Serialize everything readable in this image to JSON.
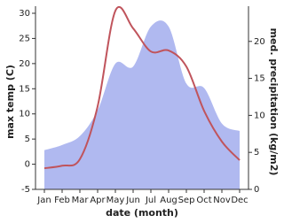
{
  "chart_data": {
    "type": "line",
    "xlabel": "date (month)",
    "ylabel": "max temp (C)",
    "y2label": "med. precipitation (kg/m2)",
    "categories": [
      "Jan",
      "Feb",
      "Mar",
      "Apr",
      "May",
      "Jun",
      "Jul",
      "Aug",
      "Sep",
      "Oct",
      "Nov",
      "Dec"
    ],
    "series": [
      {
        "type": "area",
        "axis": "y2",
        "color": "#b0b9f0",
        "values": [
          5.3,
          6.0,
          7.2,
          10.7,
          17.0,
          16.6,
          22.0,
          22.0,
          14.3,
          13.7,
          8.9,
          7.9
        ]
      },
      {
        "type": "line",
        "axis": "y",
        "color": "#c0545c",
        "values": [
          -0.8,
          -0.3,
          1.0,
          11.5,
          30.5,
          27.0,
          22.4,
          22.6,
          19.4,
          10.6,
          4.5,
          0.8
        ]
      }
    ],
    "ylim": [
      -5,
      30
    ],
    "yticks": [
      -5,
      0,
      5,
      10,
      15,
      20,
      25,
      30
    ],
    "y2lim": [
      0,
      23.8
    ],
    "y2ticks": [
      0,
      5,
      10,
      15,
      20
    ]
  }
}
